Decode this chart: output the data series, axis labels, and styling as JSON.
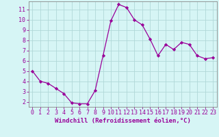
{
  "x": [
    0,
    1,
    2,
    3,
    4,
    5,
    6,
    7,
    8,
    9,
    10,
    11,
    12,
    13,
    14,
    15,
    16,
    17,
    18,
    19,
    20,
    21,
    22,
    23
  ],
  "y": [
    5.0,
    4.0,
    3.8,
    3.3,
    2.8,
    1.9,
    1.8,
    1.8,
    3.1,
    6.5,
    9.9,
    11.5,
    11.2,
    10.0,
    9.5,
    8.1,
    6.5,
    7.6,
    7.1,
    7.8,
    7.6,
    6.5,
    6.2,
    6.3
  ],
  "line_color": "#990099",
  "marker": "D",
  "marker_size": 2.2,
  "bg_color": "#d6f5f5",
  "grid_color": "#b0d8d8",
  "xlabel": "Windchill (Refroidissement éolien,°C)",
  "xlabel_color": "#990099",
  "tick_color": "#990099",
  "ylim": [
    1.5,
    11.8
  ],
  "xlim": [
    -0.5,
    23.5
  ],
  "yticks": [
    2,
    3,
    4,
    5,
    6,
    7,
    8,
    9,
    10,
    11
  ],
  "xticks": [
    0,
    1,
    2,
    3,
    4,
    5,
    6,
    7,
    8,
    9,
    10,
    11,
    12,
    13,
    14,
    15,
    16,
    17,
    18,
    19,
    20,
    21,
    22,
    23
  ],
  "font_size_xlabel": 6.5,
  "font_size_ticks": 6.0
}
